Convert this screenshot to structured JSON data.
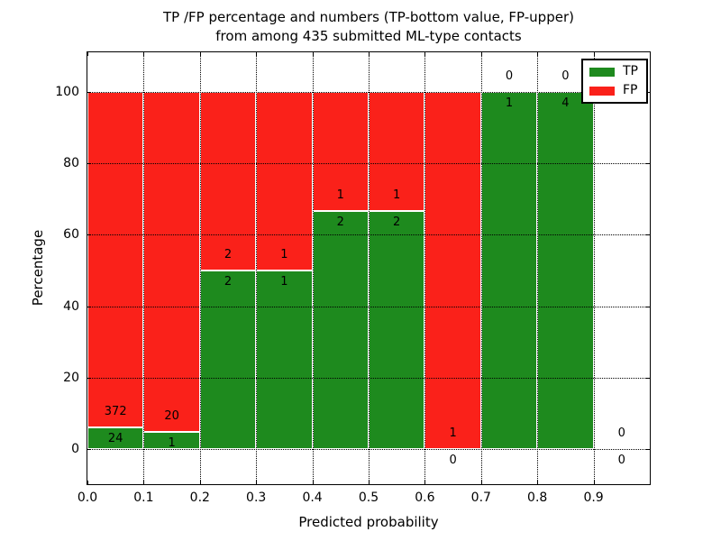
{
  "chart_data": {
    "type": "bar",
    "stacked": true,
    "title": "TP /FP percentage and numbers (TP-bottom value, FP-upper)\nfrom among 435 submitted ML-type contacts",
    "title_lines": [
      "TP /FP percentage and numbers (TP-bottom value, FP-upper)",
      "from among 435 submitted ML-type contacts"
    ],
    "xlabel": "Predicted probability",
    "ylabel": "Percentage",
    "xlim": [
      0,
      1.0
    ],
    "ylim": [
      -9.8,
      111.1
    ],
    "bars_normalized_to": 100,
    "bin_width": 0.1,
    "bin_starts": [
      0.0,
      0.1,
      0.2,
      0.3,
      0.4,
      0.5,
      0.6,
      0.7,
      0.8,
      0.9
    ],
    "x_ticks": [
      {
        "v": 0.0,
        "label": "0.0"
      },
      {
        "v": 0.1,
        "label": "0.1"
      },
      {
        "v": 0.2,
        "label": "0.2"
      },
      {
        "v": 0.3,
        "label": "0.3"
      },
      {
        "v": 0.4,
        "label": "0.4"
      },
      {
        "v": 0.5,
        "label": "0.5"
      },
      {
        "v": 0.6,
        "label": "0.6"
      },
      {
        "v": 0.7,
        "label": "0.7"
      },
      {
        "v": 0.8,
        "label": "0.8"
      },
      {
        "v": 0.9,
        "label": "0.9"
      },
      {
        "v": 1.0,
        "label": ""
      }
    ],
    "y_ticks": [
      {
        "v": 0,
        "label": "0"
      },
      {
        "v": 20,
        "label": "20"
      },
      {
        "v": 40,
        "label": "40"
      },
      {
        "v": 60,
        "label": "60"
      },
      {
        "v": 80,
        "label": "80"
      },
      {
        "v": 100,
        "label": "100"
      }
    ],
    "grid": true,
    "series": [
      {
        "name": "TP",
        "position": "bottom",
        "color": "#1e8a1e",
        "values": [
          24,
          1,
          2,
          1,
          2,
          2,
          0,
          1,
          4,
          0
        ]
      },
      {
        "name": "FP",
        "position": "top",
        "color": "#fa211a",
        "values": [
          372,
          20,
          2,
          1,
          1,
          1,
          1,
          0,
          0,
          0
        ]
      }
    ],
    "legend": {
      "position": "upper right",
      "items": [
        "TP",
        "FP"
      ]
    }
  }
}
